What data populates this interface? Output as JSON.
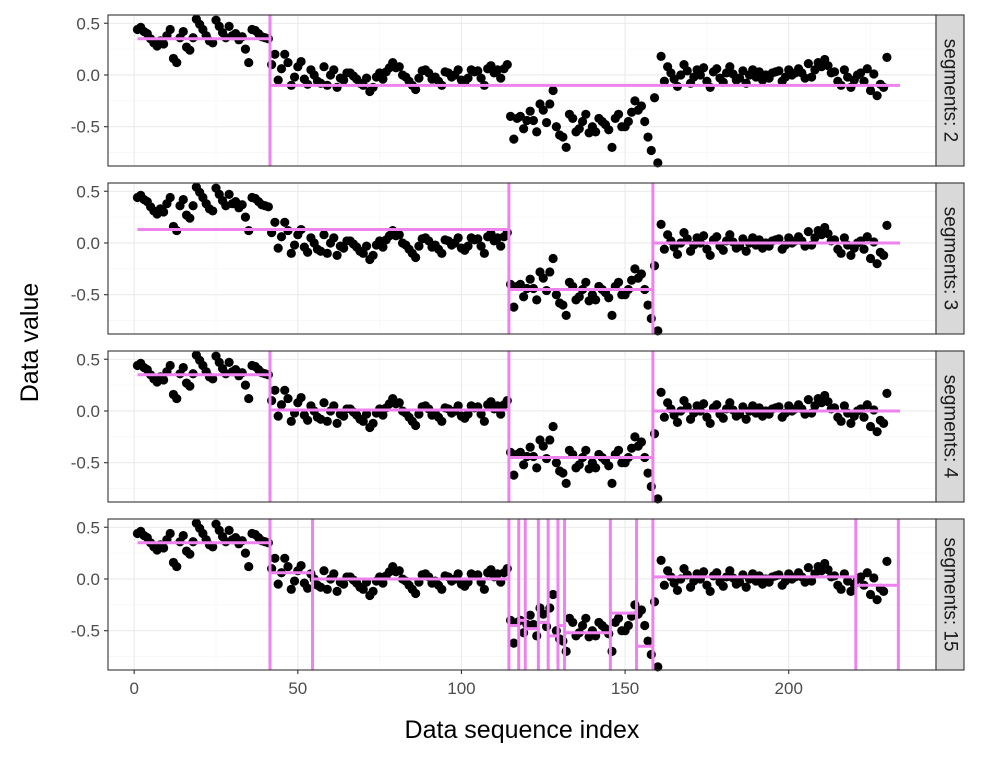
{
  "chart_data": {
    "type": "scatter",
    "title": "",
    "xlabel": "Data sequence index",
    "ylabel": "Data value",
    "xlim": [
      -8,
      245
    ],
    "ylim": [
      -0.88,
      0.58
    ],
    "x_ticks": [
      0,
      50,
      100,
      150,
      200
    ],
    "x_tick_labels": [
      "0",
      "50",
      "100",
      "150",
      "200"
    ],
    "y_ticks": [
      0.5,
      0.0,
      -0.5
    ],
    "y_tick_labels": [
      "0.5",
      "0.0",
      "-0.5"
    ],
    "grid": true,
    "colors": {
      "points": "#000000",
      "segments": "#ee82ee",
      "strip": "#d9d9d9",
      "grid_major": "#ebebeb",
      "grid_minor": "#f5f5f5"
    },
    "points": {
      "count": 234,
      "x_start": 1,
      "y": [
        0.44,
        0.46,
        0.42,
        0.4,
        0.35,
        0.31,
        0.28,
        0.33,
        0.3,
        0.38,
        0.44,
        0.16,
        0.12,
        0.36,
        0.42,
        0.27,
        0.24,
        0.36,
        0.54,
        0.49,
        0.44,
        0.38,
        0.33,
        0.31,
        0.53,
        0.47,
        0.41,
        0.36,
        0.47,
        0.38,
        0.4,
        0.34,
        0.37,
        0.25,
        0.12,
        0.44,
        0.43,
        0.4,
        0.37,
        0.36,
        0.35,
        0.1,
        0.2,
        -0.05,
        0.06,
        0.2,
        0.12,
        -0.1,
        -0.02,
        0.08,
        0.13,
        -0.04,
        -0.09,
        0.05,
        0.0,
        -0.06,
        -0.08,
        0.08,
        -0.1,
        0.0,
        0.05,
        -0.12,
        -0.03,
        -0.05,
        0.02,
        0.02,
        -0.01,
        -0.04,
        -0.08,
        -0.1,
        -0.03,
        -0.16,
        -0.12,
        -0.02,
        0.02,
        -0.04,
        0.03,
        0.07,
        0.12,
        0.07,
        0.08,
        0.0,
        -0.02,
        -0.06,
        -0.1,
        -0.14,
        -0.03,
        0.04,
        0.05,
        0.02,
        -0.04,
        -0.02,
        -0.06,
        -0.1,
        0.03,
        0.02,
        -0.02,
        0.0,
        0.05,
        -0.05,
        -0.07,
        -0.03,
        0.05,
        0.03,
        0.04,
        -0.03,
        -0.1,
        0.06,
        0.09,
        0.02,
        0.05,
        -0.03,
        0.06,
        0.1,
        -0.4,
        -0.62,
        -0.42,
        -0.4,
        -0.52,
        -0.44,
        -0.35,
        -0.44,
        -0.55,
        -0.28,
        -0.34,
        -0.46,
        -0.28,
        -0.15,
        -0.5,
        -0.58,
        -0.6,
        -0.7,
        -0.38,
        -0.42,
        -0.55,
        -0.52,
        -0.45,
        -0.38,
        -0.56,
        -0.5,
        -0.55,
        -0.42,
        -0.45,
        -0.48,
        -0.53,
        -0.7,
        -0.42,
        -0.38,
        -0.5,
        -0.5,
        -0.45,
        -0.36,
        -0.25,
        -0.34,
        -0.3,
        -0.45,
        -0.6,
        -0.73,
        -0.22,
        -0.85,
        0.18,
        -0.06,
        0.08,
        0.02,
        -0.04,
        -0.11,
        0.0,
        0.1,
        0.04,
        -0.08,
        -0.02,
        0.05,
        0.0,
        0.07,
        -0.06,
        -0.12,
        0.03,
        0.06,
        -0.03,
        -0.07,
        0.02,
        0.08,
        0.01,
        -0.05,
        -0.03,
        0.04,
        -0.08,
        0.0,
        0.05,
        -0.02,
        0.03,
        -0.05,
        0.0,
        -0.03,
        0.02,
        0.03,
        0.04,
        -0.06,
        -0.02,
        0.05,
        0.0,
        0.02,
        0.06,
        0.02,
        -0.03,
        0.11,
        -0.02,
        0.05,
        0.12,
        0.08,
        0.15,
        0.09,
        0.02,
        0.03,
        -0.06,
        -0.1,
        0.05,
        -0.02,
        -0.12,
        -0.05,
        0.0,
        0.02,
        -0.06,
        0.06,
        -0.15,
        0.01,
        -0.2,
        -0.09,
        -0.12,
        0.17
      ]
    },
    "panels": [
      {
        "strip": "segments: 2",
        "changepoints": [
          41.5
        ],
        "segments": [
          {
            "x": [
              1,
              41.5
            ],
            "mean": 0.35
          },
          {
            "x": [
              41.5,
              234
            ],
            "mean": -0.1
          }
        ]
      },
      {
        "strip": "segments: 3",
        "changepoints": [
          114.5,
          158.5
        ],
        "segments": [
          {
            "x": [
              1,
              114.5
            ],
            "mean": 0.13
          },
          {
            "x": [
              114.5,
              158.5
            ],
            "mean": -0.45
          },
          {
            "x": [
              158.5,
              234
            ],
            "mean": 0.0
          }
        ]
      },
      {
        "strip": "segments: 4",
        "changepoints": [
          41.5,
          114.5,
          158.5
        ],
        "segments": [
          {
            "x": [
              1,
              41.5
            ],
            "mean": 0.35
          },
          {
            "x": [
              41.5,
              114.5
            ],
            "mean": 0.01
          },
          {
            "x": [
              114.5,
              158.5
            ],
            "mean": -0.45
          },
          {
            "x": [
              158.5,
              234
            ],
            "mean": 0.0
          }
        ]
      },
      {
        "strip": "segments: 15",
        "changepoints": [
          41.5,
          54.5,
          114.5,
          117.5,
          119.5,
          123.5,
          126.5,
          129.5,
          131.5,
          145.5,
          153.5,
          158.5,
          220.5,
          233.5
        ],
        "segments": [
          {
            "x": [
              1,
              41.5
            ],
            "mean": 0.35
          },
          {
            "x": [
              41.5,
              54.5
            ],
            "mean": 0.06
          },
          {
            "x": [
              54.5,
              114.5
            ],
            "mean": 0.0
          },
          {
            "x": [
              114.5,
              117.5
            ],
            "mean": -0.45
          },
          {
            "x": [
              117.5,
              119.5
            ],
            "mean": -0.4
          },
          {
            "x": [
              119.5,
              123.5
            ],
            "mean": -0.48
          },
          {
            "x": [
              123.5,
              126.5
            ],
            "mean": -0.42
          },
          {
            "x": [
              126.5,
              129.5
            ],
            "mean": -0.55
          },
          {
            "x": [
              129.5,
              131.5
            ],
            "mean": -0.45
          },
          {
            "x": [
              131.5,
              145.5
            ],
            "mean": -0.52
          },
          {
            "x": [
              145.5,
              153.5
            ],
            "mean": -0.33
          },
          {
            "x": [
              153.5,
              158.5
            ],
            "mean": -0.65
          },
          {
            "x": [
              158.5,
              220.5
            ],
            "mean": 0.02
          },
          {
            "x": [
              220.5,
              233.5
            ],
            "mean": -0.06
          },
          {
            "x": [
              233.5,
              234
            ],
            "mean": 0.17
          }
        ]
      }
    ]
  }
}
